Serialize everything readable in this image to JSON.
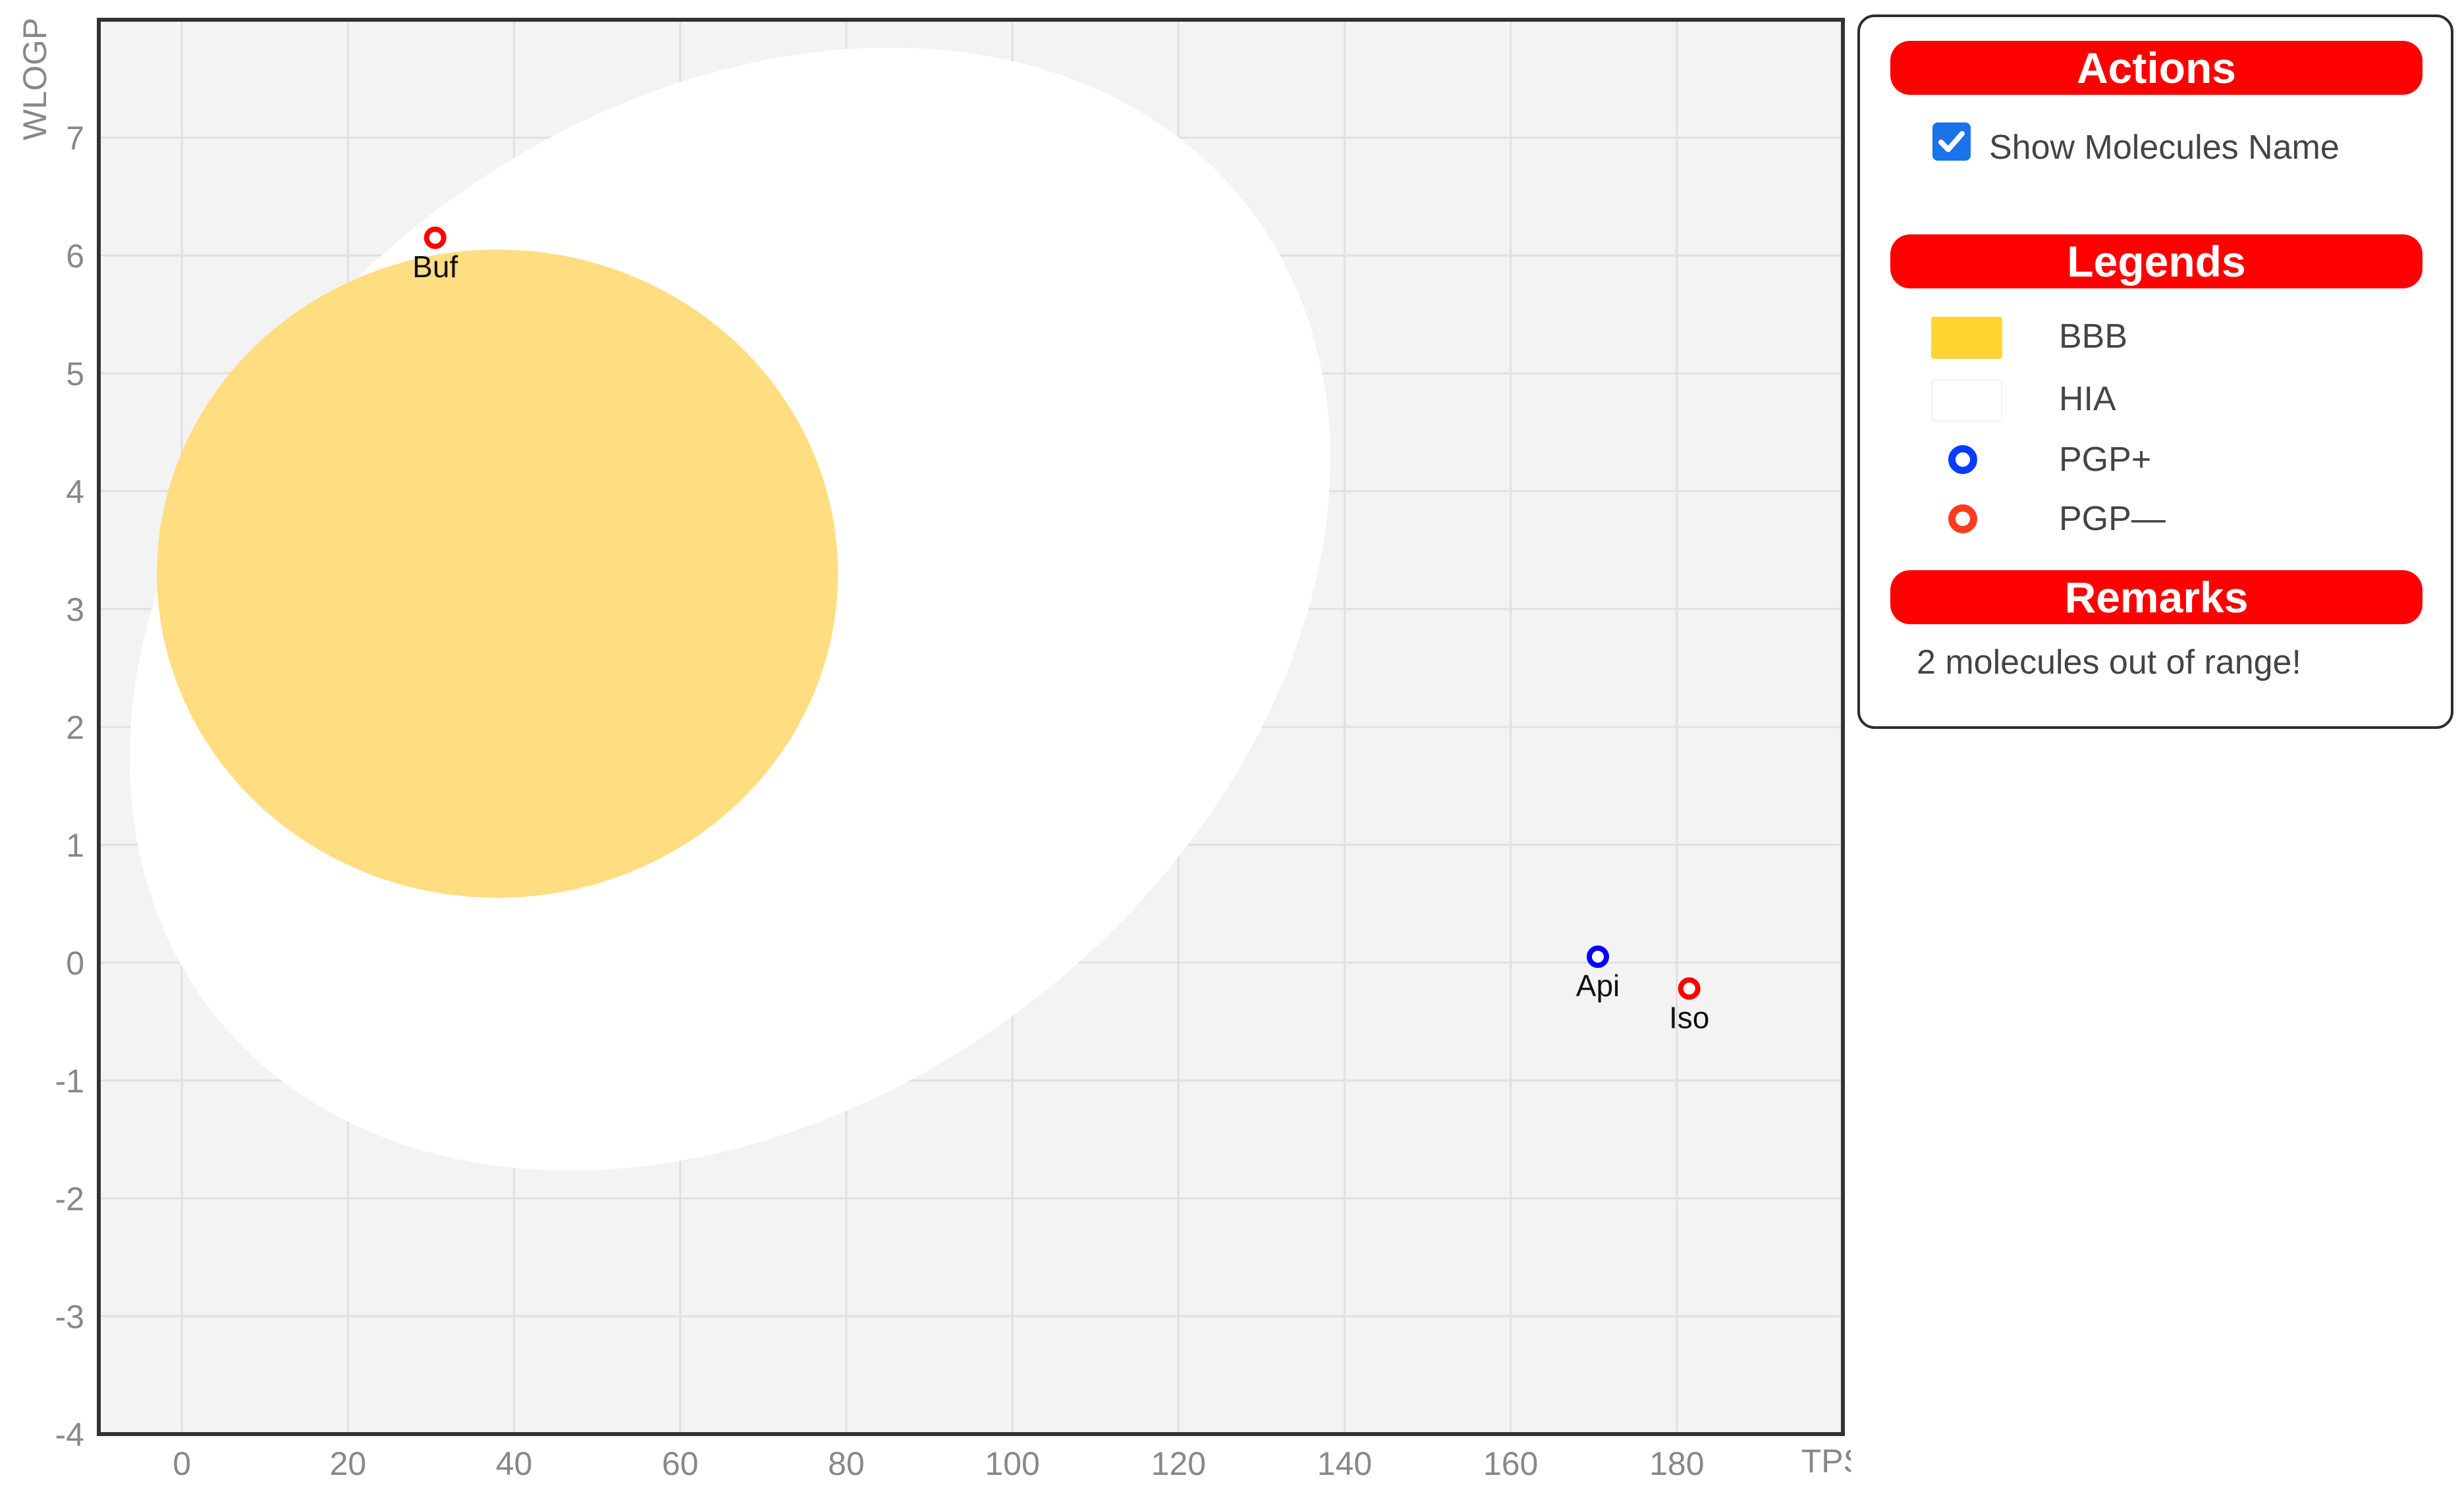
{
  "chart_data": {
    "type": "scatter",
    "xlabel": "TPSA",
    "ylabel": "WLOGP",
    "xlim": [
      -10,
      200
    ],
    "ylim": [
      -4,
      8
    ],
    "xticks": [
      0,
      20,
      40,
      60,
      80,
      100,
      120,
      140,
      160,
      180
    ],
    "yticks": [
      -4,
      -3,
      -2,
      -1,
      0,
      1,
      2,
      3,
      4,
      5,
      6,
      7
    ],
    "grid": true,
    "regions": [
      {
        "name": "HIA",
        "color": "#ffffff",
        "cx": 66,
        "cy": 3.0,
        "rx": 79,
        "ry": 4.2,
        "rotation_deg": -38
      },
      {
        "name": "BBB",
        "color": "#ffdd80",
        "cx": 38,
        "cy": 3.3,
        "rx": 41,
        "ry": 2.75,
        "rotation_deg": 0
      }
    ],
    "points": [
      {
        "label": "Buf",
        "x": 30.5,
        "y": 6.15,
        "class": "PGP-"
      },
      {
        "label": "Api",
        "x": 170.5,
        "y": 0.05,
        "class": "PGP+"
      },
      {
        "label": "Iso",
        "x": 181.5,
        "y": -0.22,
        "class": "PGP-"
      }
    ],
    "colors": {
      "PGP+": "#0000ff",
      "PGP-": "#ff0000",
      "plot_bg": "#f3f3f3"
    }
  },
  "panel": {
    "actions_title": "Actions",
    "show_names_label": "Show Molecules Name",
    "show_names_checked": true,
    "legends_title": "Legends",
    "legend_items": [
      {
        "label": "BBB",
        "swatch": "#ffd530",
        "kind": "box"
      },
      {
        "label": "HIA",
        "swatch": "#ffffff",
        "kind": "box"
      },
      {
        "label": "PGP+",
        "swatch": "#0a3cff",
        "kind": "ring"
      },
      {
        "label": "PGP—",
        "swatch": "#ff3b1f",
        "kind": "ring"
      }
    ],
    "remarks_title": "Remarks",
    "remarks_text": "2 molecules out of range!"
  }
}
